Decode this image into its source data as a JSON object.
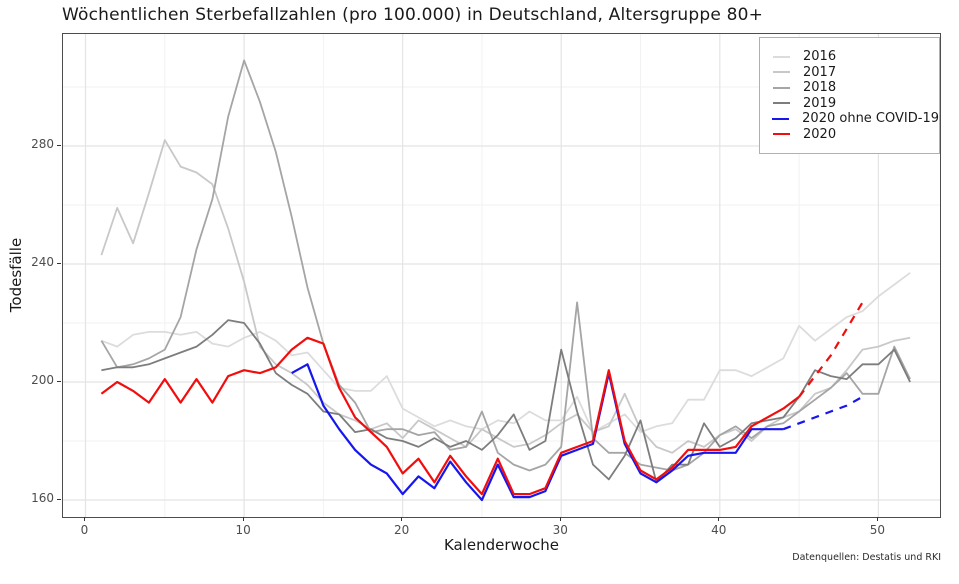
{
  "chart_data": {
    "type": "line",
    "title": "Wöchentlichen Sterbefallzahlen (pro 100.000) in Deutschland, Altersgruppe 80+",
    "xlabel": "Kalenderwoche",
    "ylabel": "Todesfälle",
    "caption": "Datenquellen: Destatis und RKI",
    "x_ticks": [
      0,
      10,
      20,
      30,
      40,
      50
    ],
    "x_minor_ticks": [
      5,
      15,
      25,
      35,
      45
    ],
    "y_ticks": [
      160,
      200,
      240,
      280
    ],
    "y_minor_ticks": [
      180,
      220,
      260,
      300
    ],
    "xlim": [
      -1.5,
      54
    ],
    "ylim": [
      154,
      318
    ],
    "grid": true,
    "legend_position": "top-right-inside",
    "legend": [
      "2016",
      "2017",
      "2018",
      "2019",
      "2020 ohne COVID-19",
      "2020"
    ],
    "series": [
      {
        "name": "2016",
        "color": "#dcdcdc",
        "line_width": 1.8,
        "segments": [
          {
            "dash": false,
            "x_start": 1,
            "values": [
              214,
              212,
              216,
              217,
              217,
              216,
              217,
              213,
              212,
              215,
              217,
              214,
              209,
              210,
              204,
              198,
              197,
              197,
              202,
              191,
              188,
              185,
              187,
              185,
              184,
              187,
              186,
              190,
              187,
              187,
              195,
              183,
              186,
              189,
              183,
              185,
              186,
              194,
              194,
              204,
              204,
              202,
              205,
              208,
              219,
              214,
              218,
              222,
              224,
              229,
              233,
              237
            ]
          }
        ]
      },
      {
        "name": "2017",
        "color": "#c8c8c8",
        "line_width": 1.8,
        "segments": [
          {
            "dash": false,
            "x_start": 1,
            "values": [
              243,
              259,
              247,
              264,
              282,
              273,
              271,
              267,
              252,
              234,
              212,
              206,
              203,
              199,
              193,
              189,
              187,
              184,
              186,
              181,
              187,
              184,
              181,
              178,
              184,
              181,
              178,
              179,
              182,
              186,
              189,
              183,
              185,
              196,
              184,
              178,
              176,
              180,
              178,
              182,
              184,
              180,
              185,
              188,
              190,
              196,
              198,
              204,
              211,
              212,
              214,
              215
            ]
          }
        ]
      },
      {
        "name": "2018",
        "color": "#a5a5a5",
        "line_width": 1.8,
        "segments": [
          {
            "dash": false,
            "x_start": 1,
            "values": [
              214,
              205,
              206,
              208,
              211,
              222,
              245,
              262,
              290,
              309,
              295,
              278,
              256,
              232,
              213,
              199,
              193,
              183,
              184,
              184,
              182,
              183,
              177,
              178,
              190,
              176,
              172,
              170,
              172,
              178,
              227,
              181,
              176,
              176,
              172,
              171,
              170,
              172,
              176,
              182,
              185,
              181,
              185,
              186,
              190,
              194,
              198,
              203,
              196,
              196,
              212,
              201
            ]
          }
        ]
      },
      {
        "name": "2019",
        "color": "#7d7d7d",
        "line_width": 1.8,
        "segments": [
          {
            "dash": false,
            "x_start": 1,
            "values": [
              204,
              205,
              205,
              206,
              208,
              210,
              212,
              216,
              221,
              220,
              213,
              203,
              199,
              196,
              190,
              189,
              183,
              184,
              181,
              180,
              178,
              181,
              178,
              180,
              177,
              182,
              189,
              177,
              180,
              211,
              190,
              172,
              167,
              175,
              187,
              166,
              172,
              172,
              186,
              178,
              181,
              186,
              187,
              188,
              195,
              204,
              202,
              201,
              206,
              206,
              211,
              200
            ]
          }
        ]
      },
      {
        "name": "2020 ohne COVID-19",
        "color": "#1616ee",
        "line_width": 2.2,
        "segments": [
          {
            "dash": false,
            "x_start": 13,
            "values": [
              203,
              206,
              192,
              184,
              177,
              172,
              169,
              162,
              168,
              164,
              173,
              166,
              160,
              172,
              161,
              161,
              163,
              175,
              177,
              179,
              203,
              179,
              169,
              166,
              170,
              175,
              176,
              176,
              176,
              184,
              184,
              184
            ]
          },
          {
            "dash": true,
            "x_start": 44,
            "values": [
              184,
              186,
              188,
              190,
              192,
              195
            ]
          }
        ]
      },
      {
        "name": "2020",
        "color": "#f20d0d",
        "line_width": 2.2,
        "segments": [
          {
            "dash": false,
            "x_start": 1,
            "values": [
              196,
              200,
              197,
              193,
              201,
              193,
              201,
              193,
              202,
              204,
              203,
              205,
              211,
              215,
              213,
              198,
              188,
              183,
              178,
              169,
              174,
              166,
              175,
              168,
              162,
              174,
              162,
              162,
              164,
              176,
              178,
              180,
              204,
              180,
              170,
              167,
              171,
              177,
              177,
              177,
              178,
              185,
              188,
              191,
              195
            ]
          },
          {
            "dash": true,
            "x_start": 45,
            "values": [
              195,
              202,
              209,
              218,
              227
            ]
          }
        ]
      }
    ]
  }
}
